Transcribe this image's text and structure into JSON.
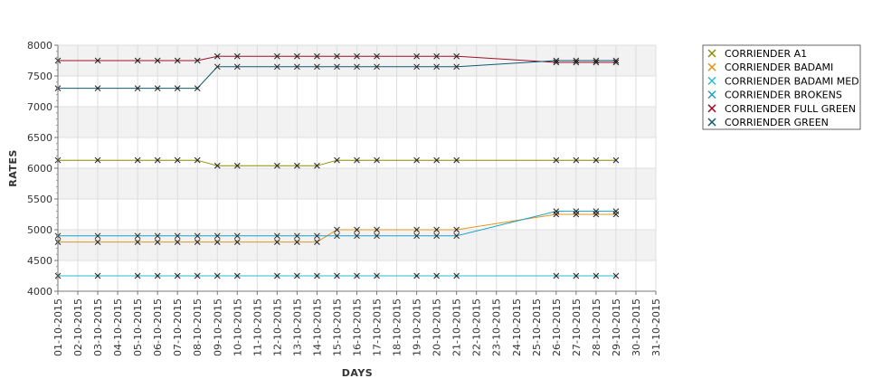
{
  "chart_data": {
    "type": "line",
    "xlabel": "DAYS",
    "ylabel": "RATES",
    "ylim": [
      4000,
      8000
    ],
    "yticks": [
      4000,
      4500,
      5000,
      5500,
      6000,
      6500,
      7000,
      7500,
      8000
    ],
    "grid": true,
    "legend_position": "right",
    "x_ticks": [
      "01-10-2015",
      "02-10-2015",
      "03-10-2015",
      "04-10-2015",
      "05-10-2015",
      "06-10-2015",
      "07-10-2015",
      "08-10-2015",
      "09-10-2015",
      "10-10-2015",
      "11-10-2015",
      "12-10-2015",
      "13-10-2015",
      "14-10-2015",
      "15-10-2015",
      "16-10-2015",
      "17-10-2015",
      "18-10-2015",
      "19-10-2015",
      "20-10-2015",
      "21-10-2015",
      "22-10-2015",
      "23-10-2015",
      "24-10-2015",
      "25-10-2015",
      "26-10-2015",
      "27-10-2015",
      "28-10-2015",
      "29-10-2015",
      "30-10-2015",
      "31-10-2015"
    ],
    "x": [
      "01-10-2015",
      "03-10-2015",
      "05-10-2015",
      "06-10-2015",
      "07-10-2015",
      "08-10-2015",
      "09-10-2015",
      "10-10-2015",
      "12-10-2015",
      "13-10-2015",
      "14-10-2015",
      "15-10-2015",
      "16-10-2015",
      "17-10-2015",
      "19-10-2015",
      "20-10-2015",
      "21-10-2015",
      "26-10-2015",
      "27-10-2015",
      "28-10-2015",
      "29-10-2015"
    ],
    "series": [
      {
        "name": "CORRIENDER A1",
        "color": "#8c8c00",
        "values": [
          6130,
          6130,
          6130,
          6130,
          6130,
          6130,
          6040,
          6040,
          6040,
          6040,
          6040,
          6130,
          6130,
          6130,
          6130,
          6130,
          6130,
          6130,
          6130,
          6130,
          6130
        ]
      },
      {
        "name": "CORRIENDER BADAMI",
        "color": "#e0961e",
        "values": [
          4800,
          4800,
          4800,
          4800,
          4800,
          4800,
          4800,
          4800,
          4800,
          4800,
          4800,
          5000,
          5000,
          5000,
          5000,
          5000,
          5000,
          5250,
          5250,
          5250,
          5250
        ]
      },
      {
        "name": "CORRIENDER BADAMI MED",
        "color": "#22bcd4",
        "values": [
          4250,
          4250,
          4250,
          4250,
          4250,
          4250,
          4250,
          4250,
          4250,
          4250,
          4250,
          4250,
          4250,
          4250,
          4250,
          4250,
          4250,
          4250,
          4250,
          4250,
          4250
        ]
      },
      {
        "name": "CORRIENDER BROKENS",
        "color": "#1aa0c8",
        "values": [
          4900,
          4900,
          4900,
          4900,
          4900,
          4900,
          4900,
          4900,
          4900,
          4900,
          4900,
          4900,
          4900,
          4900,
          4900,
          4900,
          4900,
          5300,
          5300,
          5300,
          5300
        ]
      },
      {
        "name": "CORRIENDER FULL GREEN",
        "color": "#a0102a",
        "values": [
          7750,
          7750,
          7750,
          7750,
          7750,
          7750,
          7820,
          7820,
          7820,
          7820,
          7820,
          7820,
          7820,
          7820,
          7820,
          7820,
          7820,
          7720,
          7720,
          7720,
          7720
        ]
      },
      {
        "name": "CORRIENDER GREEN",
        "color": "#0e5a70",
        "values": [
          7300,
          7300,
          7300,
          7300,
          7300,
          7300,
          7650,
          7650,
          7650,
          7650,
          7650,
          7650,
          7650,
          7650,
          7650,
          7650,
          7650,
          7750,
          7750,
          7750,
          7750
        ]
      }
    ]
  }
}
